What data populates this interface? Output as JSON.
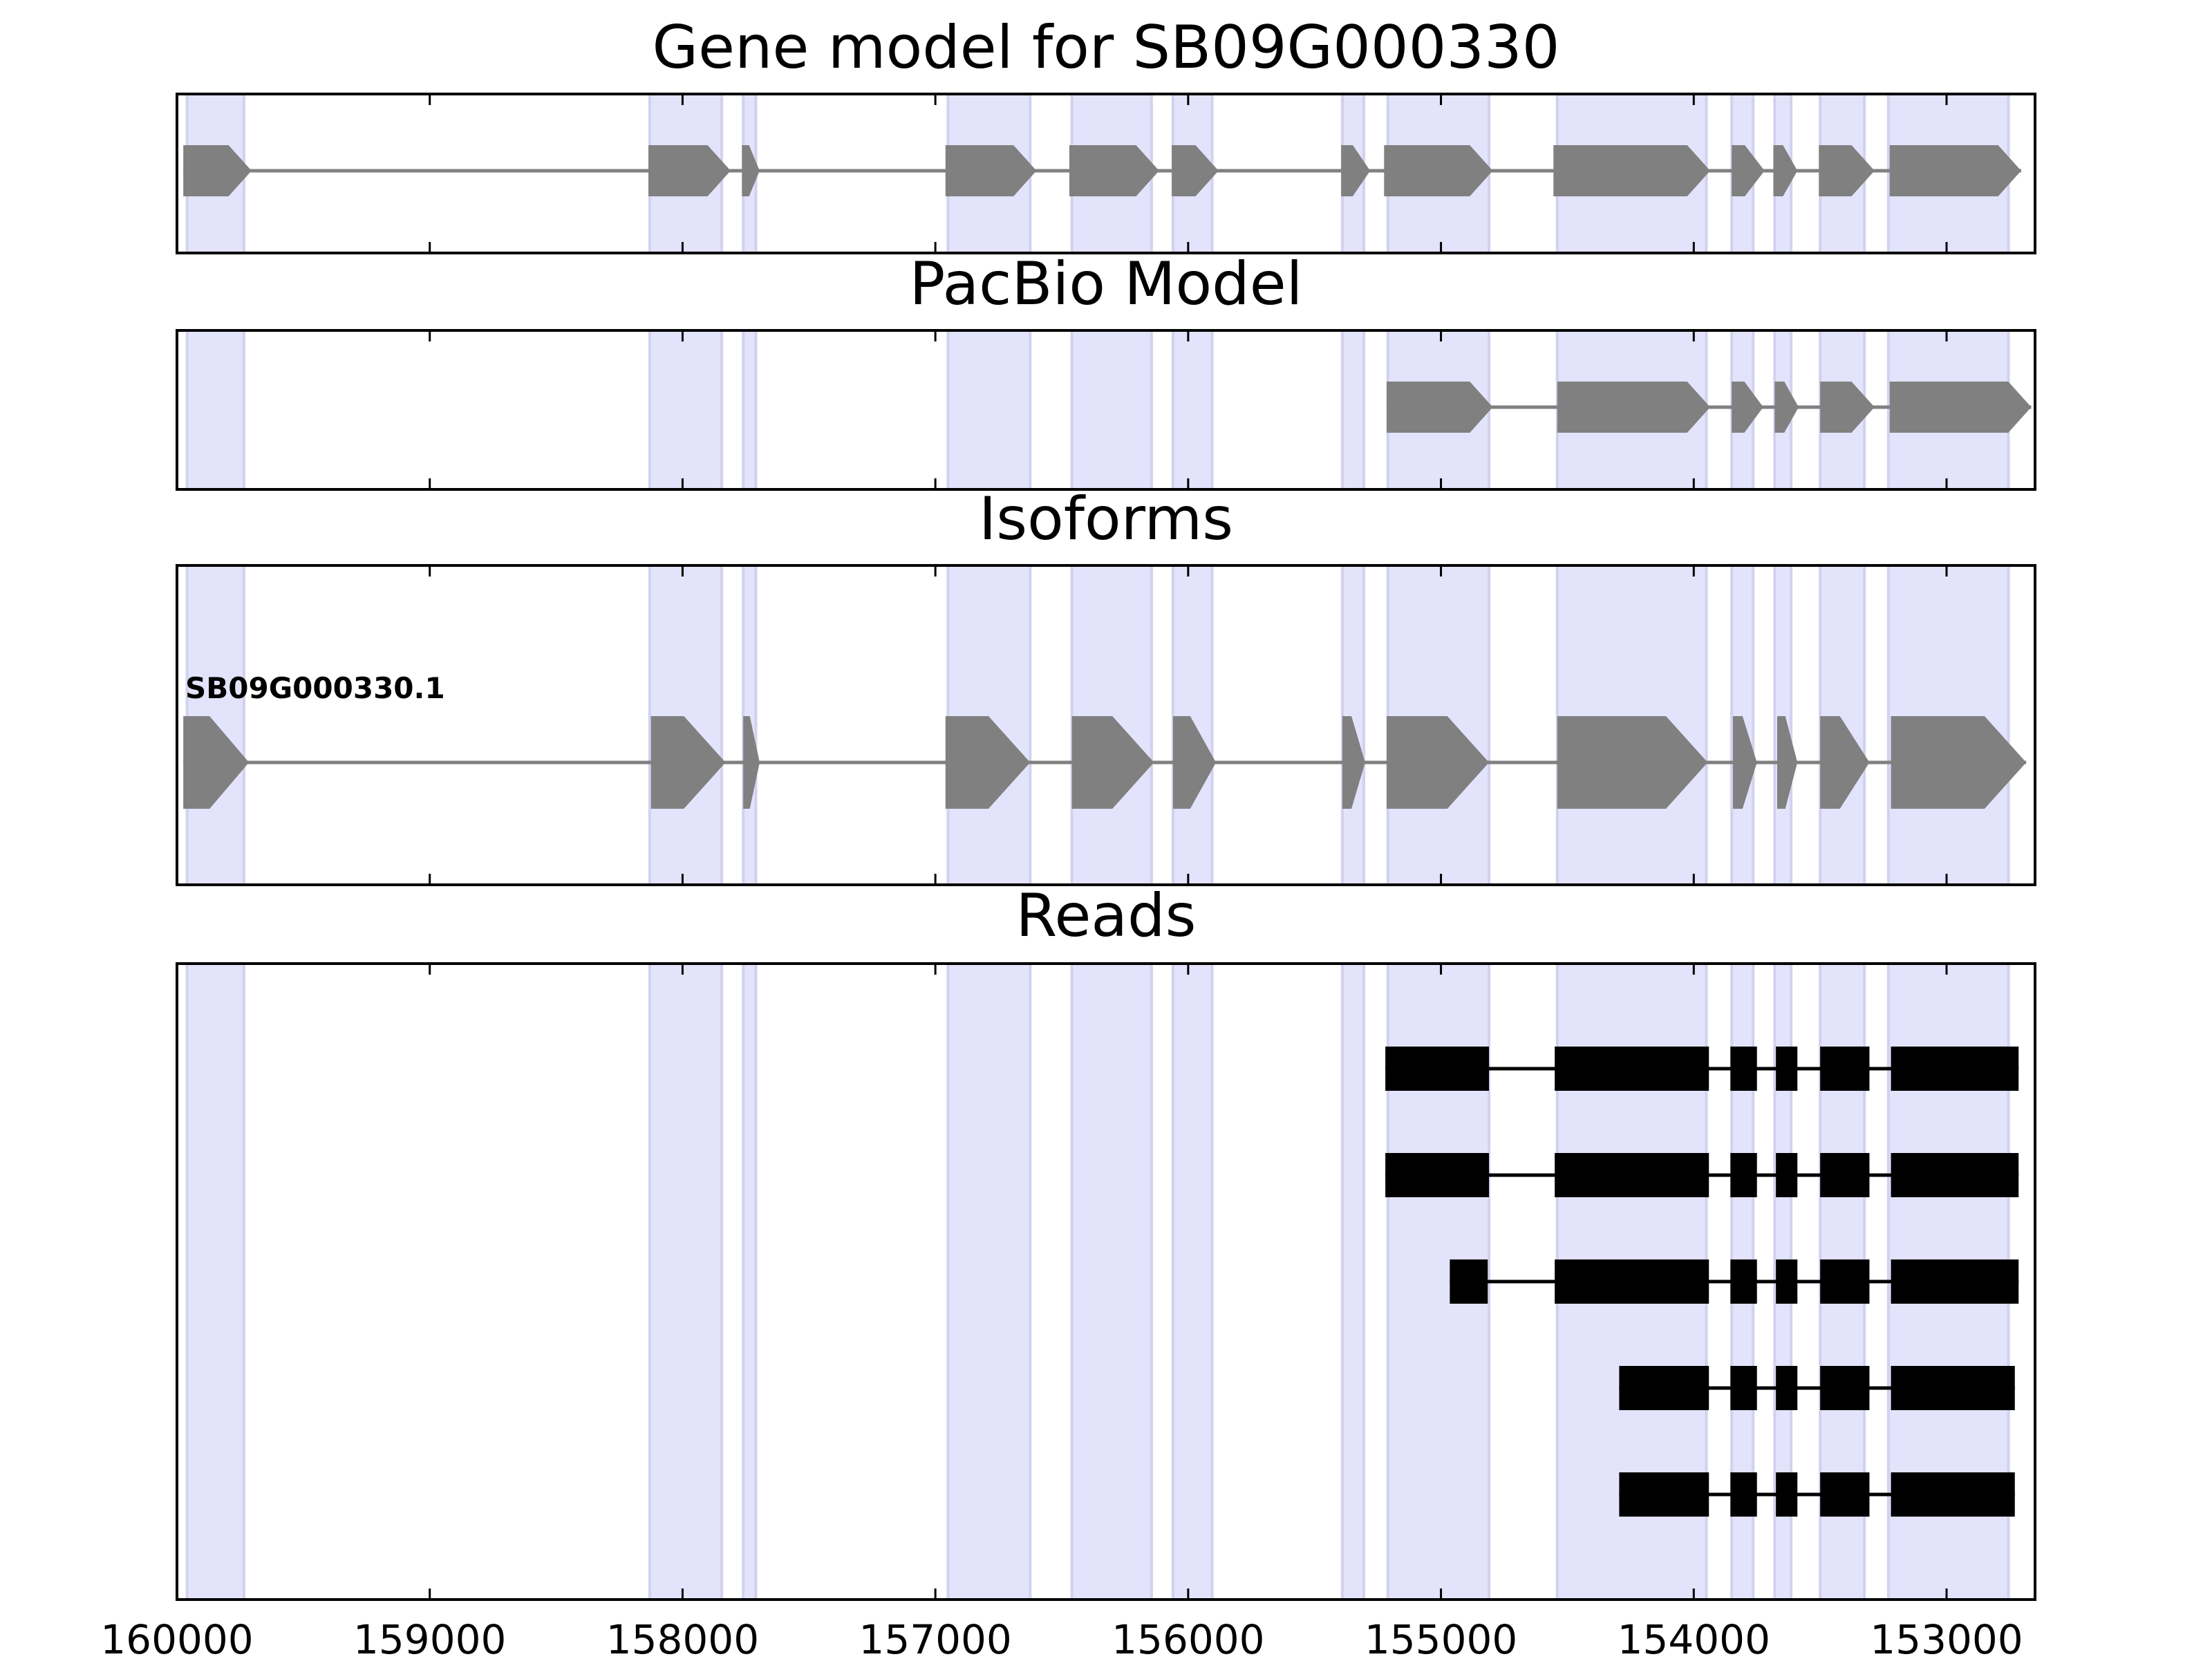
{
  "chart_data": {
    "type": "gene-track",
    "x_axis": {
      "domain": [
        160000,
        152650
      ],
      "reversed": true,
      "ticks": [
        160000,
        159000,
        158000,
        157000,
        156000,
        155000,
        154000,
        153000
      ],
      "tick_labels": [
        "160000",
        "159000",
        "158000",
        "157000",
        "156000",
        "155000",
        "154000",
        "153000"
      ]
    },
    "colors": {
      "shade": "#e3e3fb",
      "shade_edge": "#d1d1f0",
      "model_fill": "#808080",
      "intron_line": "#808080",
      "read_fill": "#000000",
      "axes": "#000000"
    },
    "exon_regions": [
      [
        159960,
        159735
      ],
      [
        158130,
        157845
      ],
      [
        157760,
        157710
      ],
      [
        156950,
        156625
      ],
      [
        156460,
        156145
      ],
      [
        156060,
        155905
      ],
      [
        155390,
        155305
      ],
      [
        155210,
        154810
      ],
      [
        154540,
        153950
      ],
      [
        153850,
        153765
      ],
      [
        153680,
        153615
      ],
      [
        153500,
        153325
      ],
      [
        153230,
        152755
      ]
    ],
    "panels": [
      {
        "id": "gene-model",
        "title": "Gene model for SB09G000330",
        "kind": "model",
        "tracks": [
          {
            "label": "",
            "exons": [
              [
                159975,
                159705
              ],
              [
                158135,
                157810
              ],
              [
                157765,
                157695
              ],
              [
                156960,
                156600
              ],
              [
                156470,
                156115
              ],
              [
                156065,
                155880
              ],
              [
                155395,
                155280
              ],
              [
                155225,
                154795
              ],
              [
                154555,
                153935
              ],
              [
                153850,
                153720
              ],
              [
                153685,
                153590
              ],
              [
                153505,
                153285
              ],
              [
                153225,
                152705
              ]
            ]
          }
        ]
      },
      {
        "id": "pacbio-model",
        "title": "PacBio Model",
        "kind": "model",
        "tracks": [
          {
            "label": "",
            "exons": [
              [
                155215,
                154795
              ],
              [
                154540,
                153935
              ],
              [
                153850,
                153725
              ],
              [
                153680,
                153585
              ],
              [
                153500,
                153285
              ],
              [
                153225,
                152665
              ]
            ]
          }
        ]
      },
      {
        "id": "isoforms",
        "title": "Isoforms",
        "kind": "model",
        "tracks": [
          {
            "label": "SB09G000330.1",
            "exons": [
              [
                159975,
                159715
              ],
              [
                158125,
                157830
              ],
              [
                157760,
                157695
              ],
              [
                156960,
                156625
              ],
              [
                156460,
                156135
              ],
              [
                156060,
                155890
              ],
              [
                155390,
                155300
              ],
              [
                155215,
                154810
              ],
              [
                154540,
                153945
              ],
              [
                153845,
                153750
              ],
              [
                153670,
                153590
              ],
              [
                153500,
                153305
              ],
              [
                153220,
                152685
              ]
            ]
          }
        ]
      },
      {
        "id": "reads",
        "title": "Reads",
        "kind": "reads",
        "tracks": [
          {
            "label": "",
            "exons": [
              [
                155220,
                154810
              ],
              [
                154550,
                153940
              ],
              [
                153855,
                153750
              ],
              [
                153675,
                153590
              ],
              [
                153500,
                153305
              ],
              [
                153220,
                152715
              ]
            ]
          },
          {
            "label": "",
            "exons": [
              [
                155220,
                154810
              ],
              [
                154550,
                153940
              ],
              [
                153855,
                153750
              ],
              [
                153675,
                153590
              ],
              [
                153500,
                153305
              ],
              [
                153220,
                152715
              ]
            ]
          },
          {
            "label": "",
            "exons": [
              [
                154965,
                154815
              ],
              [
                154550,
                153940
              ],
              [
                153855,
                153750
              ],
              [
                153675,
                153590
              ],
              [
                153500,
                153305
              ],
              [
                153220,
                152715
              ]
            ]
          },
          {
            "label": "",
            "exons": [
              [
                154295,
                153940
              ],
              [
                153855,
                153750
              ],
              [
                153675,
                153590
              ],
              [
                153500,
                153305
              ],
              [
                153220,
                152730
              ]
            ]
          },
          {
            "label": "",
            "exons": [
              [
                154295,
                153940
              ],
              [
                153855,
                153750
              ],
              [
                153675,
                153590
              ],
              [
                153500,
                153305
              ],
              [
                153220,
                152730
              ]
            ]
          }
        ]
      }
    ]
  }
}
